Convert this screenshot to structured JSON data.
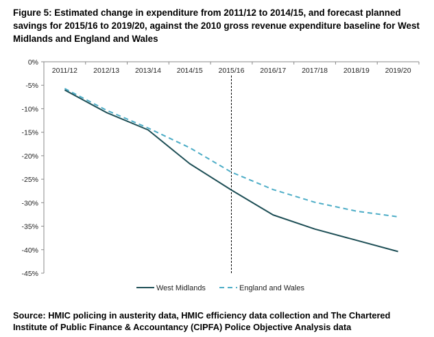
{
  "figure": {
    "title": "Figure 5: Estimated change in expenditure from 2011/12 to 2014/15, and forecast planned savings for 2015/16 to 2019/20, against the 2010 gross revenue expenditure baseline for West Midlands and England and Wales",
    "source": "Source: HMIC policing in austerity data, HMIC efficiency data collection and The Chartered Institute of Public Finance & Accountancy (CIPFA) Police Objective Analysis data"
  },
  "chart_data": {
    "type": "line",
    "categories": [
      "2011/12",
      "2012/13",
      "2013/14",
      "2014/15",
      "2015/16",
      "2016/17",
      "2017/18",
      "2018/19",
      "2019/20"
    ],
    "series": [
      {
        "name": "West Midlands",
        "values": [
          -6.0,
          -10.8,
          -14.5,
          -21.7,
          -27.3,
          -32.6,
          -35.6,
          -38.0,
          -40.4
        ],
        "color": "#1d4e55",
        "style": "solid"
      },
      {
        "name": "England and Wales",
        "values": [
          -5.7,
          -10.3,
          -14.1,
          -18.3,
          -23.5,
          -27.2,
          -29.9,
          -31.8,
          -33.0
        ],
        "color": "#4bacc6",
        "style": "dashed"
      }
    ],
    "y_ticks": [
      0,
      -5,
      -10,
      -15,
      -20,
      -25,
      -30,
      -35,
      -40,
      -45
    ],
    "y_tick_labels": [
      "0%",
      "-5%",
      "-10%",
      "-15%",
      "-20%",
      "-25%",
      "-30%",
      "-35%",
      "-40%",
      "-45%"
    ],
    "ylim": [
      -45,
      0
    ],
    "x_axis_position": "top",
    "divider_after_category": "2015/16",
    "divider_style": "dashed",
    "legend_position": "bottom",
    "grid": false
  }
}
